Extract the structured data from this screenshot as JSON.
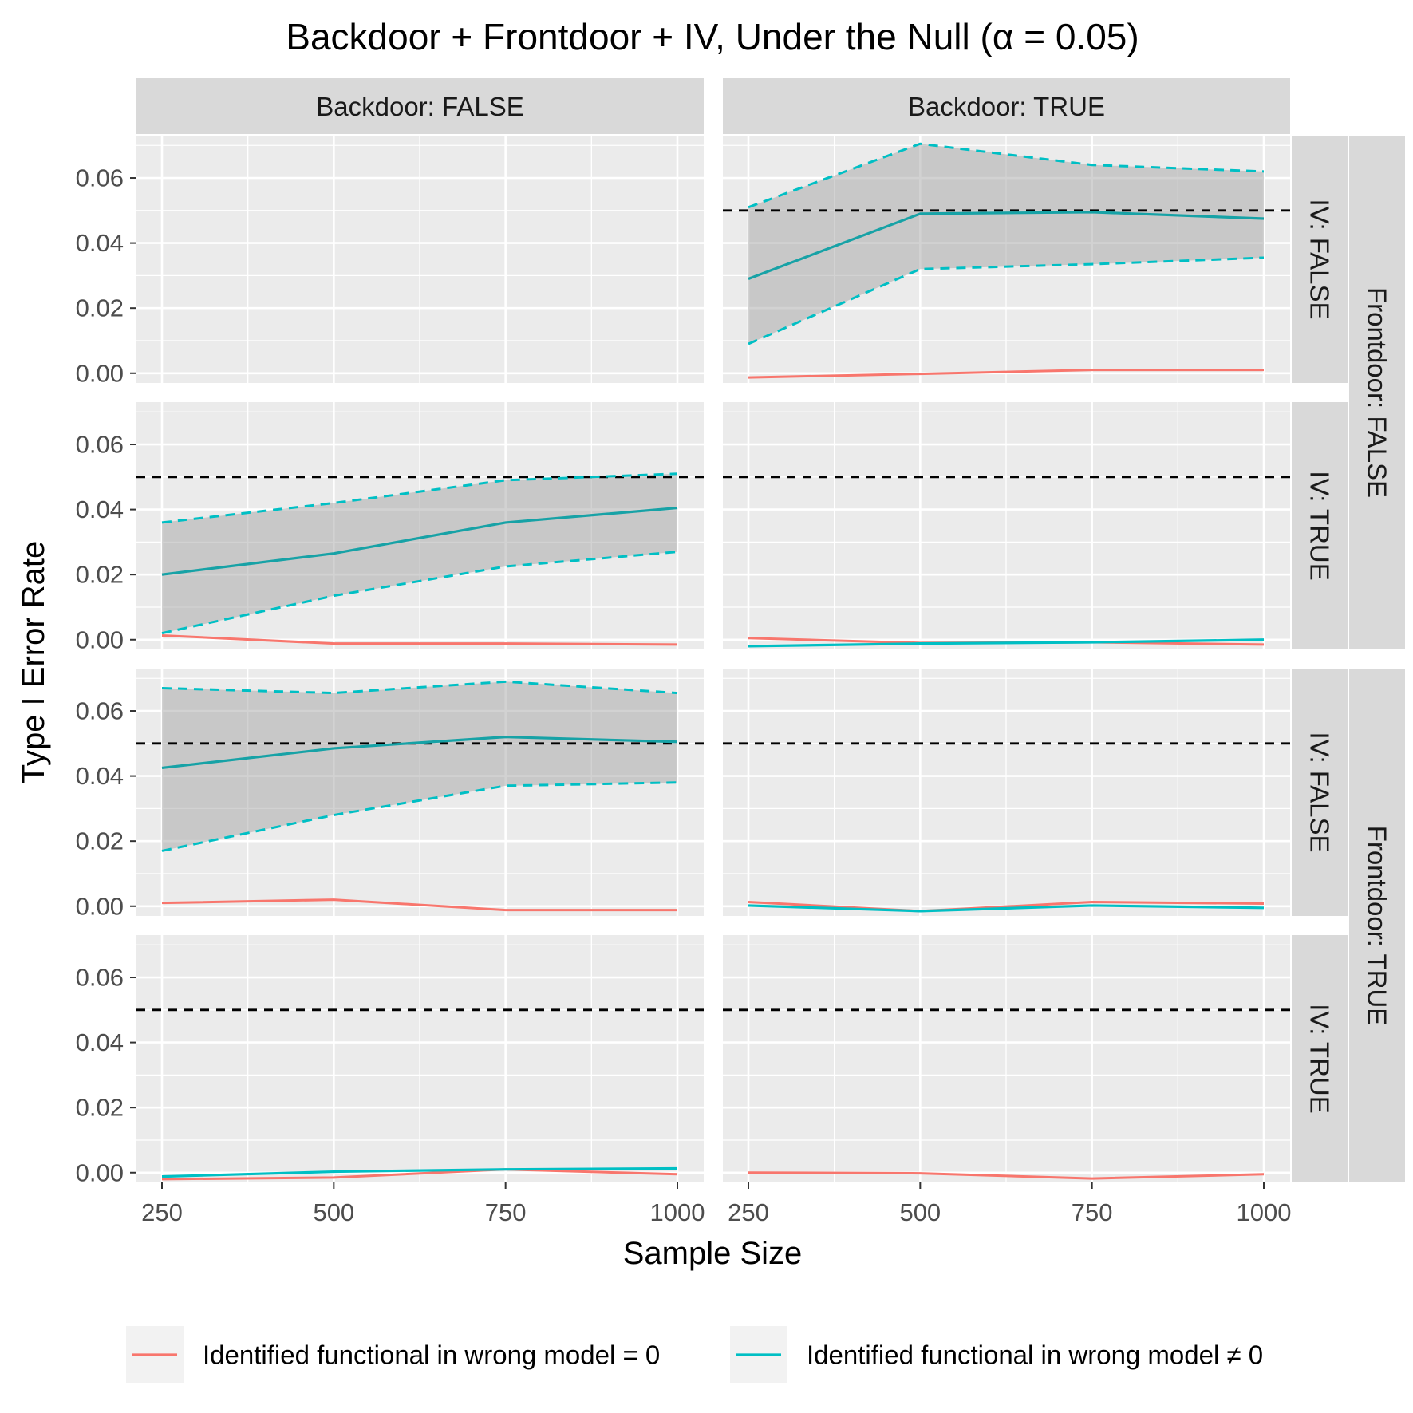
{
  "chart_data": {
    "type": "line",
    "title": "Backdoor + Frontdoor + IV, Under the Null (α = 0.05)",
    "xlabel": "Sample Size",
    "ylabel": "Type I Error Rate",
    "x": [
      250,
      500,
      750,
      1000
    ],
    "x_ticks": [
      "250",
      "500",
      "750",
      "1000"
    ],
    "y_ticks": [
      "0.00",
      "0.02",
      "0.04",
      "0.06"
    ],
    "ylim": [
      -0.003,
      0.073
    ],
    "alpha_line": 0.05,
    "col_strips": [
      "Backdoor: FALSE",
      "Backdoor: TRUE"
    ],
    "row_groups": [
      "Frontdoor: FALSE",
      "Frontdoor: TRUE"
    ],
    "row_strips": [
      "IV: FALSE",
      "IV: TRUE",
      "IV: FALSE",
      "IV: TRUE"
    ],
    "legend": {
      "position": "bottom",
      "items": [
        {
          "label": "Identified functional in wrong model = 0",
          "color": "#F8766D"
        },
        {
          "label": "Identified functional in wrong model ≠ 0",
          "color": "#00BFC4"
        }
      ]
    },
    "colors": {
      "zero": "#F8766D",
      "nonzero": "#00BFC4",
      "nonzero_line": "#17A2A6",
      "ribbon": "#A6A6A6",
      "panel": "#EBEBEB",
      "strip": "#D9D9D9"
    },
    "panels": [
      {
        "row": 0,
        "col": 0,
        "show_alpha": false,
        "zero": null,
        "nonzero": null,
        "ci": null
      },
      {
        "row": 0,
        "col": 1,
        "show_alpha": true,
        "zero": [
          -0.0013,
          -0.0002,
          0.001,
          0.001
        ],
        "nonzero": [
          0.029,
          0.049,
          0.0495,
          0.0475
        ],
        "ci": {
          "lower": [
            0.009,
            0.032,
            0.0335,
            0.0355
          ],
          "upper": [
            0.051,
            0.0705,
            0.064,
            0.062
          ]
        }
      },
      {
        "row": 1,
        "col": 0,
        "show_alpha": true,
        "zero": [
          0.0013,
          -0.0012,
          -0.0012,
          -0.0015
        ],
        "nonzero": [
          0.02,
          0.0265,
          0.036,
          0.0405
        ],
        "ci": {
          "lower": [
            0.002,
            0.0135,
            0.0225,
            0.027
          ],
          "upper": [
            0.036,
            0.042,
            0.049,
            0.051
          ]
        }
      },
      {
        "row": 1,
        "col": 1,
        "show_alpha": true,
        "zero": [
          0.0005,
          -0.001,
          -0.0008,
          -0.0015
        ],
        "nonzero": [
          -0.002,
          -0.0012,
          -0.0008,
          0.0
        ],
        "ci": null
      },
      {
        "row": 2,
        "col": 0,
        "show_alpha": true,
        "zero": [
          0.001,
          0.002,
          -0.0012,
          -0.0012
        ],
        "nonzero": [
          0.0425,
          0.0485,
          0.052,
          0.0505
        ],
        "ci": {
          "lower": [
            0.017,
            0.028,
            0.037,
            0.038
          ],
          "upper": [
            0.067,
            0.0655,
            0.069,
            0.0655
          ]
        }
      },
      {
        "row": 2,
        "col": 1,
        "show_alpha": true,
        "zero": [
          0.0013,
          -0.0015,
          0.0013,
          0.0008
        ],
        "nonzero": [
          0.0002,
          -0.0015,
          0.0002,
          -0.0005
        ],
        "ci": null
      },
      {
        "row": 3,
        "col": 0,
        "show_alpha": true,
        "zero": [
          -0.002,
          -0.0015,
          0.001,
          -0.0005
        ],
        "nonzero": [
          -0.0012,
          0.0003,
          0.001,
          0.0013
        ],
        "ci": null
      },
      {
        "row": 3,
        "col": 1,
        "show_alpha": true,
        "zero": [
          0.0,
          -0.0002,
          -0.0018,
          -0.0005
        ],
        "nonzero": null,
        "ci": null
      }
    ]
  }
}
